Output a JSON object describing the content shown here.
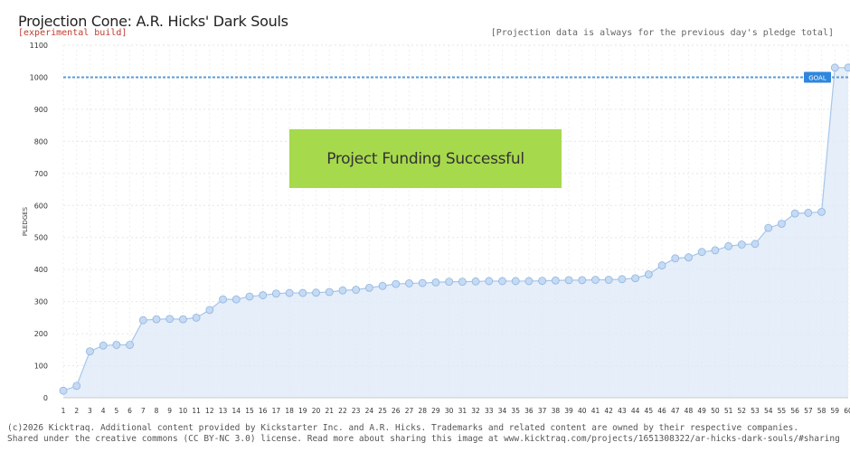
{
  "header": {
    "title": "Projection Cone: A.R. Hicks' Dark Souls",
    "build_tag": "[experimental build]",
    "note": "[Projection data is always for the previous day's pledge total]"
  },
  "banner": {
    "text": "Project Funding Successful"
  },
  "footer": {
    "line1": "(c)2026 Kicktraq. Additional content provided by Kickstarter Inc. and A.R. Hicks. Trademarks and related content are owned by their respective companies.",
    "line2": "Shared under the creative commons (CC BY-NC 3.0) license. Read more about sharing this image at www.kicktraq.com/projects/1651308322/ar-hicks-dark-souls/#sharing"
  },
  "colors": {
    "area_fill": "#dce8f7",
    "line": "#a7c6ea",
    "marker_fill": "#c5daf3",
    "marker_stroke": "#8fb4e0",
    "goal_line": "#5b9bd5",
    "goal_badge": "#2e86de",
    "banner": "#a6d94c"
  },
  "chart_data": {
    "type": "line",
    "ylabel": "PLEDGES",
    "xlabel": "",
    "ylim": [
      0,
      1100
    ],
    "yticks": [
      0,
      100,
      200,
      300,
      400,
      500,
      600,
      700,
      800,
      900,
      1000,
      1100
    ],
    "grid": true,
    "goal": {
      "label": "GOAL",
      "value": 1000
    },
    "categories": [
      "1",
      "2",
      "3",
      "4",
      "5",
      "6",
      "7",
      "8",
      "9",
      "10",
      "11",
      "12",
      "13",
      "14",
      "15",
      "16",
      "17",
      "18",
      "19",
      "20",
      "21",
      "22",
      "23",
      "24",
      "25",
      "26",
      "27",
      "28",
      "29",
      "30",
      "31",
      "32",
      "33",
      "34",
      "35",
      "36",
      "37",
      "38",
      "39",
      "40",
      "41",
      "42",
      "43",
      "44",
      "45",
      "46",
      "47",
      "48",
      "49",
      "50",
      "51",
      "52",
      "53",
      "54",
      "55",
      "56",
      "57",
      "58",
      "59",
      "60"
    ],
    "series": [
      {
        "values": [
          22,
          37,
          145,
          163,
          165,
          165,
          242,
          245,
          246,
          245,
          250,
          274,
          307,
          307,
          316,
          320,
          325,
          327,
          327,
          328,
          330,
          335,
          337,
          343,
          349,
          355,
          357,
          358,
          360,
          362,
          362,
          363,
          364,
          364,
          364,
          364,
          365,
          366,
          367,
          367,
          368,
          368,
          370,
          373,
          385,
          413,
          435,
          438,
          455,
          460,
          473,
          478,
          480,
          530,
          543,
          575,
          577,
          580,
          1030,
          1030
        ]
      }
    ]
  }
}
